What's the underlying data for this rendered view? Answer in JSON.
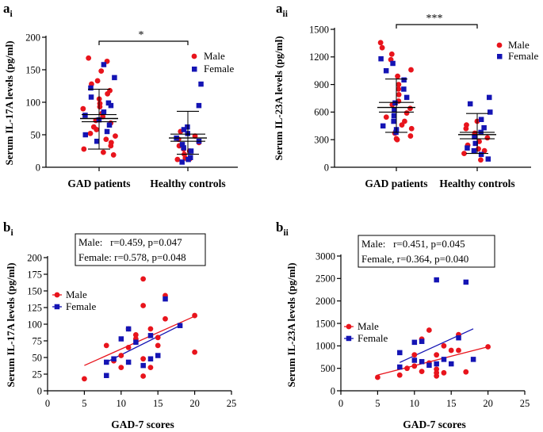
{
  "chart_data": [
    {
      "id": "ai",
      "type": "scatter",
      "panel_label": "a",
      "panel_sub": "i",
      "ylabel": "Serum IL-17A levels (pg/ml)",
      "ylim": [
        0,
        200
      ],
      "yticks": [
        0,
        50,
        100,
        150,
        200
      ],
      "categories": [
        "GAD patients",
        "Healthy controls"
      ],
      "legend": [
        "Male",
        "Female"
      ],
      "significance": "*",
      "summary": [
        {
          "mean": 75,
          "ci_low": 70,
          "ci_high": 81,
          "sd_low": 28,
          "sd_high": 120
        },
        {
          "mean": 45,
          "ci_low": 40,
          "ci_high": 51,
          "sd_low": 20,
          "sd_high": 86
        }
      ],
      "series": [
        {
          "name": "Male",
          "points": [
            [
              0,
              168
            ],
            [
              0,
              163
            ],
            [
              0,
              148
            ],
            [
              0,
              133
            ],
            [
              0,
              128
            ],
            [
              0,
              118
            ],
            [
              0,
              113
            ],
            [
              0,
              105
            ],
            [
              0,
              98
            ],
            [
              0,
              93
            ],
            [
              0,
              90
            ],
            [
              0,
              83
            ],
            [
              0,
              78
            ],
            [
              0,
              72
            ],
            [
              0,
              68
            ],
            [
              0,
              62
            ],
            [
              0,
              58
            ],
            [
              0,
              52
            ],
            [
              0,
              48
            ],
            [
              0,
              43
            ],
            [
              0,
              38
            ],
            [
              0,
              33
            ],
            [
              0,
              28
            ],
            [
              0,
              23
            ],
            [
              0,
              19
            ],
            [
              1,
              55
            ],
            [
              1,
              48
            ],
            [
              1,
              43
            ],
            [
              1,
              38
            ],
            [
              1,
              33
            ],
            [
              1,
              28
            ],
            [
              1,
              25
            ],
            [
              1,
              20
            ],
            [
              1,
              14
            ],
            [
              1,
              13
            ],
            [
              1,
              12
            ]
          ]
        },
        {
          "name": "Female",
          "points": [
            [
              0,
              158
            ],
            [
              0,
              138
            ],
            [
              0,
              122
            ],
            [
              0,
              108
            ],
            [
              0,
              99
            ],
            [
              0,
              95
            ],
            [
              0,
              85
            ],
            [
              0,
              80
            ],
            [
              0,
              73
            ],
            [
              0,
              65
            ],
            [
              0,
              55
            ],
            [
              0,
              50
            ],
            [
              0,
              40
            ],
            [
              1,
              128
            ],
            [
              1,
              95
            ],
            [
              1,
              62
            ],
            [
              1,
              58
            ],
            [
              1,
              52
            ],
            [
              1,
              45
            ],
            [
              1,
              40
            ],
            [
              1,
              35
            ],
            [
              1,
              30
            ],
            [
              1,
              25
            ],
            [
              1,
              15
            ],
            [
              1,
              12
            ],
            [
              1,
              8
            ]
          ]
        }
      ]
    },
    {
      "id": "aii",
      "type": "scatter",
      "panel_label": "a",
      "panel_sub": "ii",
      "ylabel": "Serum IL-23A levels (pg/ml)",
      "ylim": [
        0,
        1500
      ],
      "yticks": [
        0,
        300,
        600,
        900,
        1200,
        1500
      ],
      "categories": [
        "GAD patients",
        "Healthy controls"
      ],
      "legend": [
        "Male",
        "Female"
      ],
      "significance": "***",
      "summary": [
        {
          "mean": 650,
          "ci_low": 600,
          "ci_high": 705,
          "sd_low": 380,
          "sd_high": 960
        },
        {
          "mean": 355,
          "ci_low": 310,
          "ci_high": 380,
          "sd_low": 150,
          "sd_high": 585
        }
      ],
      "series": [
        {
          "name": "Male",
          "points": [
            [
              0,
              1355
            ],
            [
              0,
              1300
            ],
            [
              0,
              1230
            ],
            [
              0,
              1170
            ],
            [
              0,
              1060
            ],
            [
              0,
              990
            ],
            [
              0,
              900
            ],
            [
              0,
              850
            ],
            [
              0,
              790
            ],
            [
              0,
              720
            ],
            [
              0,
              680
            ],
            [
              0,
              640
            ],
            [
              0,
              590
            ],
            [
              0,
              545
            ],
            [
              0,
              500
            ],
            [
              0,
              460
            ],
            [
              0,
              420
            ],
            [
              0,
              370
            ],
            [
              0,
              340
            ],
            [
              0,
              310
            ],
            [
              0,
              300
            ],
            [
              1,
              500
            ],
            [
              1,
              460
            ],
            [
              1,
              420
            ],
            [
              1,
              370
            ],
            [
              1,
              320
            ],
            [
              1,
              280
            ],
            [
              1,
              240
            ],
            [
              1,
              200
            ],
            [
              1,
              180
            ],
            [
              1,
              150
            ],
            [
              1,
              80
            ]
          ]
        },
        {
          "name": "Female",
          "points": [
            [
              0,
              1180
            ],
            [
              0,
              1130
            ],
            [
              0,
              1050
            ],
            [
              0,
              950
            ],
            [
              0,
              850
            ],
            [
              0,
              760
            ],
            [
              0,
              700
            ],
            [
              0,
              620
            ],
            [
              0,
              560
            ],
            [
              0,
              500
            ],
            [
              0,
              450
            ],
            [
              0,
              410
            ],
            [
              0,
              380
            ],
            [
              1,
              760
            ],
            [
              1,
              690
            ],
            [
              1,
              600
            ],
            [
              1,
              520
            ],
            [
              1,
              430
            ],
            [
              1,
              380
            ],
            [
              1,
              330
            ],
            [
              1,
              260
            ],
            [
              1,
              210
            ],
            [
              1,
              180
            ],
            [
              1,
              140
            ],
            [
              1,
              90
            ]
          ]
        }
      ]
    },
    {
      "id": "bi",
      "type": "scatter",
      "panel_label": "b",
      "panel_sub": "i",
      "xlabel": "GAD-7 scores",
      "ylabel": "Serum IL-17A levels (pg/ml)",
      "xlim": [
        0,
        25
      ],
      "xticks": [
        0,
        5,
        10,
        15,
        20,
        25
      ],
      "ylim": [
        0,
        200
      ],
      "yticks": [
        0,
        25,
        50,
        75,
        100,
        125,
        150,
        175,
        200
      ],
      "legend": [
        "Male",
        "Female"
      ],
      "stats": [
        "Male:   r=0.459, p=0.047",
        "Female: r=0.578, p=0.048"
      ],
      "series": [
        {
          "name": "Male",
          "fit": [
            [
              5,
              38
            ],
            [
              20,
              112
            ]
          ],
          "points": [
            [
              5,
              18
            ],
            [
              8,
              68
            ],
            [
              9,
              45
            ],
            [
              10,
              35
            ],
            [
              10,
              53
            ],
            [
              11,
              65
            ],
            [
              11,
              93
            ],
            [
              12,
              78
            ],
            [
              12,
              84
            ],
            [
              13,
              22
            ],
            [
              13,
              48
            ],
            [
              13,
              128
            ],
            [
              13,
              168
            ],
            [
              14,
              35
            ],
            [
              14,
              93
            ],
            [
              15,
              68
            ],
            [
              15,
              80
            ],
            [
              16,
              143
            ],
            [
              16,
              108
            ],
            [
              20,
              58
            ],
            [
              20,
              113
            ]
          ]
        },
        {
          "name": "Female",
          "fit": [
            [
              8,
              43
            ],
            [
              18,
              98
            ]
          ],
          "points": [
            [
              8,
              23
            ],
            [
              8,
              43
            ],
            [
              9,
              48
            ],
            [
              10,
              78
            ],
            [
              11,
              93
            ],
            [
              11,
              43
            ],
            [
              12,
              73
            ],
            [
              13,
              38
            ],
            [
              14,
              83
            ],
            [
              14,
              48
            ],
            [
              15,
              53
            ],
            [
              16,
              138
            ],
            [
              18,
              98
            ]
          ]
        }
      ]
    },
    {
      "id": "bii",
      "type": "scatter",
      "panel_label": "b",
      "panel_sub": "ii",
      "xlabel": "GAD-7 scores",
      "ylabel": "Serum IL-23A levels (pg/ml)",
      "xlim": [
        0,
        25
      ],
      "xticks": [
        0,
        5,
        10,
        15,
        20,
        25
      ],
      "ylim": [
        0,
        3000
      ],
      "yticks": [
        0,
        500,
        1000,
        1500,
        2000,
        2500,
        3000
      ],
      "legend": [
        "Male",
        "Female"
      ],
      "stats": [
        "Male:   r=0.451, p=0.045",
        "Female, r=0.364, p=0.040"
      ],
      "series": [
        {
          "name": "Male",
          "fit": [
            [
              5,
              350
            ],
            [
              20,
              980
            ]
          ],
          "points": [
            [
              5,
              300
            ],
            [
              8,
              350
            ],
            [
              9,
              500
            ],
            [
              10,
              800
            ],
            [
              10,
              550
            ],
            [
              11,
              430
            ],
            [
              11,
              1150
            ],
            [
              12,
              1350
            ],
            [
              12,
              620
            ],
            [
              13,
              330
            ],
            [
              13,
              400
            ],
            [
              13,
              800
            ],
            [
              13,
              480
            ],
            [
              14,
              1000
            ],
            [
              14,
              400
            ],
            [
              15,
              900
            ],
            [
              16,
              1250
            ],
            [
              16,
              900
            ],
            [
              17,
              420
            ],
            [
              20,
              980
            ]
          ]
        },
        {
          "name": "Female",
          "fit": [
            [
              8,
              630
            ],
            [
              18,
              1380
            ]
          ],
          "points": [
            [
              8,
              530
            ],
            [
              8,
              850
            ],
            [
              10,
              1080
            ],
            [
              10,
              680
            ],
            [
              11,
              1100
            ],
            [
              11,
              650
            ],
            [
              12,
              570
            ],
            [
              13,
              2470
            ],
            [
              13,
              600
            ],
            [
              14,
              700
            ],
            [
              15,
              600
            ],
            [
              16,
              1180
            ],
            [
              17,
              2420
            ],
            [
              18,
              700
            ]
          ]
        }
      ]
    }
  ],
  "colors": {
    "male": "#e8141c",
    "female": "#1414b4",
    "axis": "#000000"
  }
}
